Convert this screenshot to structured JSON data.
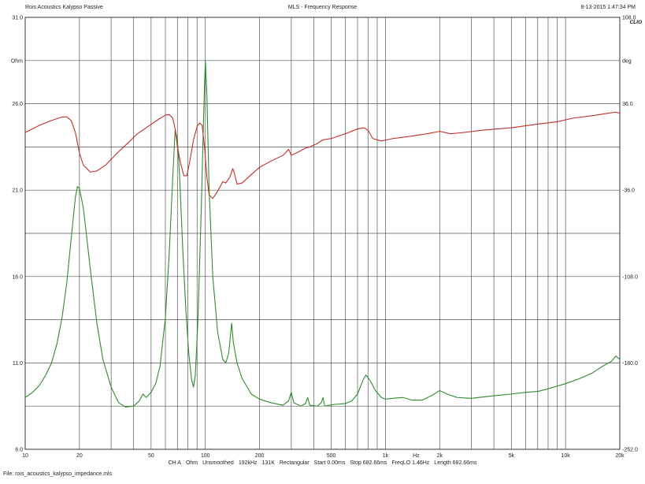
{
  "header": {
    "left": "Rois Acoustics Kalypso Passive",
    "center": "MLS - Frequency Response",
    "right": "8-13-2015 1:47:34 PM"
  },
  "brand": "CLIO",
  "footer": {
    "items": [
      "CH A",
      "Ohm",
      "Unsmoothed",
      "192kHz",
      "131K",
      "Rectangular",
      "Start 0.00ms",
      "Stop 682.66ms",
      "FreqLO 1.46Hz",
      "Length 682.66ms"
    ]
  },
  "file_label": "File: rois_acoustics_kalypso_impedance.mls",
  "chart_data": {
    "type": "line",
    "x_scale": "log",
    "xlim": [
      10,
      20000
    ],
    "x_ticks": [
      {
        "value": 10,
        "label": "10"
      },
      {
        "value": 20,
        "label": "20"
      },
      {
        "value": 50,
        "label": "50"
      },
      {
        "value": 100,
        "label": "100"
      },
      {
        "value": 200,
        "label": "200"
      },
      {
        "value": 500,
        "label": "500"
      },
      {
        "value": 1000,
        "label": "1k"
      },
      {
        "value": 2000,
        "label": "2k"
      },
      {
        "value": 5000,
        "label": "5k"
      },
      {
        "value": 10000,
        "label": "10k"
      },
      {
        "value": 20000,
        "label": "20k"
      }
    ],
    "x_unit": "Hz",
    "y_left": {
      "unit": "Ohm",
      "lim": [
        6.0,
        31.0
      ],
      "ticks": [
        {
          "value": 31.0,
          "label": "31.0"
        },
        {
          "value": 26.0,
          "label": "26.0"
        },
        {
          "value": 21.0,
          "label": "21.0"
        },
        {
          "value": 16.0,
          "label": "16.0"
        },
        {
          "value": 11.0,
          "label": "11.0"
        },
        {
          "value": 6.0,
          "label": "6.0"
        }
      ]
    },
    "y_right": {
      "unit": "deg",
      "lim": [
        -252.0,
        108.0
      ],
      "ticks": [
        {
          "value": 108.0,
          "label": "108.0"
        },
        {
          "value": 36.0,
          "label": "36.0"
        },
        {
          "value": -36.0,
          "label": "-36.0"
        },
        {
          "value": -108.0,
          "label": "-108.0"
        },
        {
          "value": -180.0,
          "label": "-180.0"
        },
        {
          "value": -252.0,
          "label": "-252.0"
        }
      ]
    },
    "grid": true,
    "series": [
      {
        "quantity": "impedance",
        "axis": "left",
        "color": "#2e8b2e",
        "points": [
          [
            10,
            9.0
          ],
          [
            11,
            9.3
          ],
          [
            12,
            9.7
          ],
          [
            13,
            10.3
          ],
          [
            14,
            11.0
          ],
          [
            15,
            12.1
          ],
          [
            16,
            13.6
          ],
          [
            17,
            15.6
          ],
          [
            18,
            18.2
          ],
          [
            19,
            20.6
          ],
          [
            19.5,
            21.2
          ],
          [
            20,
            21.1
          ],
          [
            21,
            20.0
          ],
          [
            22,
            18.2
          ],
          [
            23,
            16.4
          ],
          [
            25,
            13.3
          ],
          [
            27,
            11.2
          ],
          [
            30,
            9.6
          ],
          [
            33,
            8.7
          ],
          [
            36,
            8.45
          ],
          [
            40,
            8.5
          ],
          [
            43,
            8.8
          ],
          [
            45,
            9.2
          ],
          [
            47,
            9.0
          ],
          [
            50,
            9.3
          ],
          [
            53,
            9.8
          ],
          [
            56,
            10.8
          ],
          [
            60,
            13.6
          ],
          [
            63,
            17.3
          ],
          [
            66,
            21.8
          ],
          [
            68,
            24.5
          ],
          [
            70,
            23.9
          ],
          [
            72,
            21.8
          ],
          [
            75,
            17.5
          ],
          [
            78,
            14.0
          ],
          [
            81,
            11.5
          ],
          [
            84,
            10.0
          ],
          [
            86,
            9.6
          ],
          [
            88,
            10.3
          ],
          [
            91,
            13.5
          ],
          [
            95,
            20.0
          ],
          [
            98,
            25.5
          ],
          [
            100,
            28.5
          ],
          [
            102,
            26.5
          ],
          [
            105,
            21.0
          ],
          [
            110,
            16.0
          ],
          [
            117,
            12.8
          ],
          [
            125,
            11.2
          ],
          [
            130,
            11.0
          ],
          [
            135,
            11.6
          ],
          [
            140,
            13.3
          ],
          [
            143,
            12.2
          ],
          [
            150,
            11.0
          ],
          [
            160,
            10.1
          ],
          [
            180,
            9.2
          ],
          [
            200,
            8.9
          ],
          [
            230,
            8.7
          ],
          [
            270,
            8.55
          ],
          [
            290,
            8.8
          ],
          [
            300,
            9.3
          ],
          [
            310,
            8.7
          ],
          [
            340,
            8.5
          ],
          [
            360,
            8.65
          ],
          [
            370,
            9.0
          ],
          [
            380,
            8.55
          ],
          [
            420,
            8.5
          ],
          [
            440,
            8.7
          ],
          [
            450,
            9.0
          ],
          [
            460,
            8.5
          ],
          [
            520,
            8.6
          ],
          [
            600,
            8.65
          ],
          [
            650,
            8.8
          ],
          [
            700,
            9.2
          ],
          [
            750,
            10.0
          ],
          [
            780,
            10.3
          ],
          [
            820,
            10.0
          ],
          [
            880,
            9.4
          ],
          [
            950,
            9.0
          ],
          [
            1000,
            8.9
          ],
          [
            1100,
            8.95
          ],
          [
            1250,
            9.0
          ],
          [
            1400,
            8.85
          ],
          [
            1600,
            8.85
          ],
          [
            1800,
            9.1
          ],
          [
            2000,
            9.4
          ],
          [
            2200,
            9.2
          ],
          [
            2500,
            9.0
          ],
          [
            3000,
            8.95
          ],
          [
            4000,
            9.1
          ],
          [
            5000,
            9.2
          ],
          [
            6000,
            9.3
          ],
          [
            7000,
            9.35
          ],
          [
            8000,
            9.5
          ],
          [
            10000,
            9.8
          ],
          [
            12000,
            10.1
          ],
          [
            14000,
            10.4
          ],
          [
            16000,
            10.8
          ],
          [
            18000,
            11.1
          ],
          [
            19000,
            11.4
          ],
          [
            20000,
            11.2
          ]
        ]
      },
      {
        "quantity": "phase",
        "axis": "right",
        "color": "#c0302a",
        "points": [
          [
            10,
            12.0
          ],
          [
            12,
            18.0
          ],
          [
            14,
            22.0
          ],
          [
            16,
            25.0
          ],
          [
            17,
            25.0
          ],
          [
            18,
            22.0
          ],
          [
            19,
            12.0
          ],
          [
            20,
            -5.0
          ],
          [
            21,
            -15.0
          ],
          [
            23,
            -21.0
          ],
          [
            25,
            -20.0
          ],
          [
            28,
            -15.0
          ],
          [
            32,
            -6.0
          ],
          [
            37,
            3.0
          ],
          [
            42,
            11.0
          ],
          [
            48,
            17.0
          ],
          [
            55,
            23.0
          ],
          [
            60,
            26.5
          ],
          [
            63,
            27.0
          ],
          [
            66,
            24.0
          ],
          [
            68,
            15.0
          ],
          [
            70,
            0.0
          ],
          [
            73,
            -14.0
          ],
          [
            76,
            -24.0
          ],
          [
            79,
            -24.0
          ],
          [
            82,
            -12.0
          ],
          [
            86,
            6.0
          ],
          [
            90,
            17.0
          ],
          [
            93,
            20.0
          ],
          [
            96,
            18.0
          ],
          [
            99,
            0.0
          ],
          [
            102,
            -25.0
          ],
          [
            105,
            -40.0
          ],
          [
            110,
            -43.0
          ],
          [
            117,
            -37.0
          ],
          [
            125,
            -29.0
          ],
          [
            130,
            -30.0
          ],
          [
            137,
            -25.0
          ],
          [
            142,
            -18.0
          ],
          [
            145,
            -22.0
          ],
          [
            150,
            -31.0
          ],
          [
            160,
            -30.0
          ],
          [
            180,
            -23.0
          ],
          [
            200,
            -17.0
          ],
          [
            230,
            -12.0
          ],
          [
            270,
            -7.0
          ],
          [
            290,
            -2.0
          ],
          [
            300,
            -7.0
          ],
          [
            330,
            -4.0
          ],
          [
            360,
            -1.0
          ],
          [
            380,
            0.0
          ],
          [
            420,
            3.0
          ],
          [
            450,
            6.0
          ],
          [
            500,
            7.0
          ],
          [
            600,
            11.0
          ],
          [
            700,
            15.0
          ],
          [
            760,
            16.0
          ],
          [
            800,
            14.0
          ],
          [
            850,
            7.0
          ],
          [
            950,
            5.0
          ],
          [
            1100,
            7.0
          ],
          [
            1400,
            9.0
          ],
          [
            1700,
            11.0
          ],
          [
            2000,
            13.0
          ],
          [
            2300,
            11.0
          ],
          [
            2700,
            12.0
          ],
          [
            3500,
            14.0
          ],
          [
            5000,
            16.0
          ],
          [
            7000,
            19.0
          ],
          [
            9000,
            21.0
          ],
          [
            11000,
            24.0
          ],
          [
            14000,
            26.0
          ],
          [
            17000,
            28.0
          ],
          [
            19000,
            29.0
          ],
          [
            20000,
            28.0
          ]
        ]
      }
    ]
  }
}
